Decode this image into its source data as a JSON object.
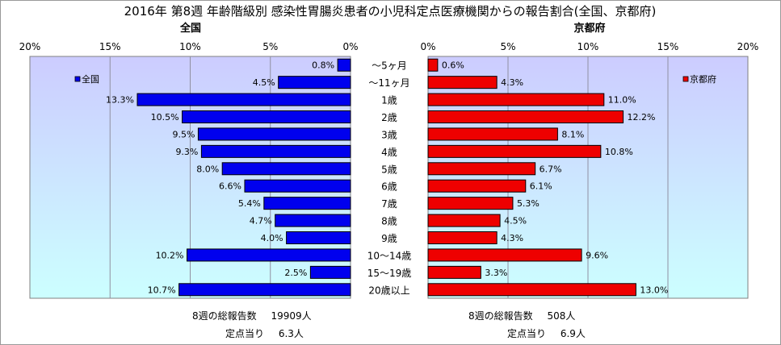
{
  "title": "2016年 第8週 年齢階級別 感染性胃腸炎患者の小児科定点医療機関からの報告割合(全国、京都府)",
  "colors": {
    "national": "#0000ee",
    "kyoto": "#ee0000",
    "panel_top": "#ccccff",
    "panel_bottom": "#ccffff"
  },
  "chart_data": [
    {
      "type": "bar",
      "orientation": "horizontal",
      "direction": "reversed",
      "panel_title": "全国",
      "legend": "全国",
      "legend_position": "top-left",
      "x_ticks": [
        "20%",
        "15%",
        "10%",
        "5%",
        "0%"
      ],
      "xlim": [
        0,
        20
      ],
      "grid": true,
      "categories": [
        "～5ヶ月",
        "～11ヶ月",
        "1歳",
        "2歳",
        "3歳",
        "4歳",
        "5歳",
        "6歳",
        "7歳",
        "8歳",
        "9歳",
        "10～14歳",
        "15～19歳",
        "20歳以上"
      ],
      "values": [
        0.8,
        4.5,
        13.3,
        10.5,
        9.5,
        9.3,
        8.0,
        6.6,
        5.4,
        4.7,
        4.0,
        10.2,
        2.5,
        10.7
      ],
      "value_labels": [
        "0.8%",
        "4.5%",
        "13.3%",
        "10.5%",
        "9.5%",
        "9.3%",
        "8.0%",
        "6.6%",
        "5.4%",
        "4.7%",
        "4.0%",
        "10.2%",
        "2.5%",
        "10.7%"
      ]
    },
    {
      "type": "bar",
      "orientation": "horizontal",
      "panel_title": "京都府",
      "legend": "京都府",
      "legend_position": "top-right",
      "x_ticks": [
        "0%",
        "5%",
        "10%",
        "15%",
        "20%"
      ],
      "xlim": [
        0,
        20
      ],
      "grid": true,
      "categories": [
        "～5ヶ月",
        "～11ヶ月",
        "1歳",
        "2歳",
        "3歳",
        "4歳",
        "5歳",
        "6歳",
        "7歳",
        "8歳",
        "9歳",
        "10～14歳",
        "15～19歳",
        "20歳以上"
      ],
      "values": [
        0.6,
        4.3,
        11.0,
        12.2,
        8.1,
        10.8,
        6.7,
        6.1,
        5.3,
        4.5,
        4.3,
        9.6,
        3.3,
        13.0
      ],
      "value_labels": [
        "0.6%",
        "4.3%",
        "11.0%",
        "12.2%",
        "8.1%",
        "10.8%",
        "6.7%",
        "6.1%",
        "5.3%",
        "4.5%",
        "4.3%",
        "9.6%",
        "3.3%",
        "13.0%"
      ]
    }
  ],
  "stats": {
    "national": {
      "total_label": "8週の総報告数",
      "total_value": "19909人",
      "per_label": "定点当り",
      "per_value": "6.3人"
    },
    "kyoto": {
      "total_label": "8週の総報告数",
      "total_value": "508人",
      "per_label": "定点当り",
      "per_value": "6.9人"
    }
  }
}
